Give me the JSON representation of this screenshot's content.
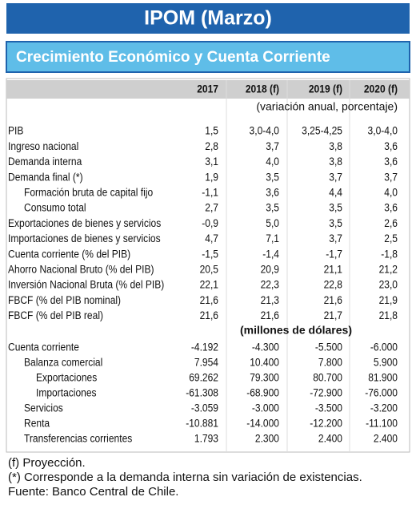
{
  "header": {
    "title": "IPOM (Marzo)",
    "subtitle": "Crecimiento Económico y Cuenta Corriente"
  },
  "table": {
    "columns": [
      "2017",
      "2018 (f)",
      "2019 (f)",
      "2020 (f)"
    ],
    "section1_note": "(variación anual, porcentaje)",
    "rows1": [
      [
        "PIB",
        "1,5",
        "3,0-4,0",
        "3,25-4,25",
        "3,0-4,0"
      ],
      [
        "Ingreso nacional",
        "2,8",
        "3,7",
        "3,8",
        "3,6"
      ],
      [
        "Demanda interna",
        "3,1",
        "4,0",
        "3,8",
        "3,6"
      ],
      [
        "Demanda final (*)",
        "1,9",
        "3,5",
        "3,7",
        "3,7"
      ],
      [
        "Formación bruta de capital fijo",
        "-1,1",
        "3,6",
        "4,4",
        "4,0"
      ],
      [
        "Consumo total",
        "2,7",
        "3,5",
        "3,5",
        "3,6"
      ],
      [
        "Exportaciones de bienes y servicios",
        "-0,9",
        "5,0",
        "3,5",
        "2,6"
      ],
      [
        "Importaciones de bienes y servicios",
        "4,7",
        "7,1",
        "3,7",
        "2,5"
      ],
      [
        "Cuenta corriente (% del PIB)",
        "-1,5",
        "-1,4",
        "-1,7",
        "-1,8"
      ],
      [
        "Ahorro Nacional Bruto (% del PIB)",
        "20,5",
        "20,9",
        "21,1",
        "21,2"
      ],
      [
        "Inversión Nacional Bruta (% del PIB)",
        "22,1",
        "22,3",
        "22,8",
        "23,0"
      ],
      [
        "FBCF (% del PIB nominal)",
        "21,6",
        "21,3",
        "21,6",
        "21,9"
      ],
      [
        "FBCF (% del PIB real)",
        "21,6",
        "21,6",
        "21,7",
        "21,8"
      ]
    ],
    "section2_note": "(millones de dólares)",
    "rows2": [
      [
        "Cuenta corriente",
        "-4.192",
        "-4.300",
        "-5.500",
        "-6.000"
      ],
      [
        "Balanza comercial",
        "7.954",
        "10.400",
        "7.800",
        "5.900"
      ],
      [
        "Exportaciones",
        "69.262",
        "79.300",
        "80.700",
        "81.900"
      ],
      [
        "Importaciones",
        "-61.308",
        "-68.900",
        "-72.900",
        "-76.000"
      ],
      [
        "Servicios",
        "-3.059",
        "-3.000",
        "-3.500",
        "-3.200"
      ],
      [
        "Renta",
        "-10.881",
        "-14.000",
        "-12.200",
        "-11.100"
      ],
      [
        "Transferencias corrientes",
        "1.793",
        "2.300",
        "2.400",
        "2.400"
      ]
    ]
  },
  "footnotes": [
    "(f) Proyección.",
    "(*) Corresponde a la demanda interna sin variación de existencias.",
    "Fuente: Banco Central de Chile."
  ]
}
